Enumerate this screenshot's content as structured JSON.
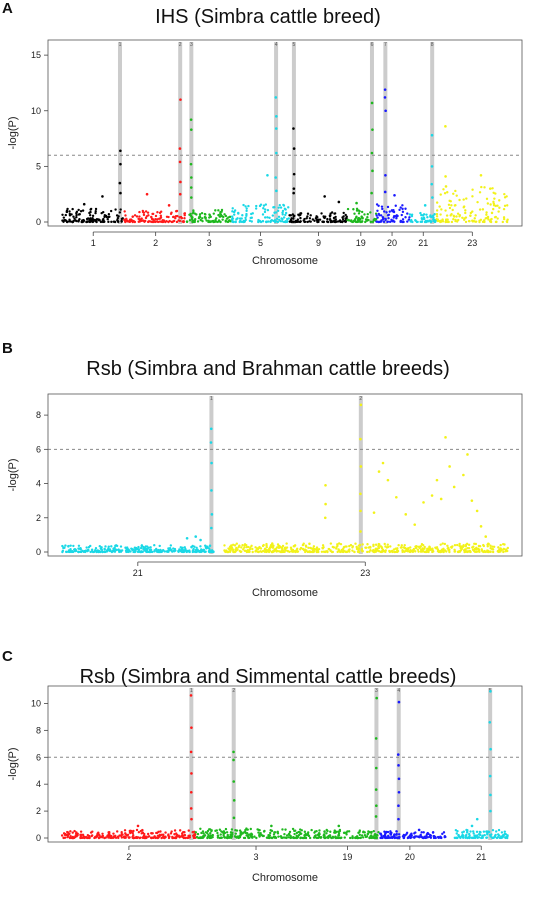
{
  "panels": [
    {
      "letter": "A",
      "title": "IHS (Simbra cattle breed)"
    },
    {
      "letter": "B",
      "title": "Rsb (Simbra and Brahman cattle breeds)"
    },
    {
      "letter": "C",
      "title": "Rsb (Simbra and Simmental cattle breeds)"
    }
  ],
  "colors": {
    "black": "#000000",
    "red": "#ff1a1a",
    "green": "#1fb81f",
    "cyan": "#1ad8e6",
    "blue": "#1a1aff",
    "yellow": "#f2f21a",
    "highlight": "#cccccc",
    "threshold": "#888888"
  },
  "chart_data": [
    {
      "type": "scatter",
      "title": "IHS (Simbra cattle breed)",
      "xlabel": "Chromosome",
      "ylabel": "-log(P)",
      "ylim": [
        0,
        16
      ],
      "yticks": [
        0,
        5,
        10,
        15
      ],
      "threshold": 6,
      "grid": false,
      "x_domain": [
        0,
        100
      ],
      "series": [
        {
          "name": "1",
          "color": "#000000",
          "range": [
            0,
            14
          ],
          "base_max": 1.2,
          "peaks": [
            [
              13,
              6.4
            ],
            [
              13,
              5.2
            ],
            [
              13,
              3.5
            ],
            [
              13,
              2.6
            ],
            [
              9,
              2.3
            ],
            [
              5,
              1.6
            ]
          ]
        },
        {
          "name": "2",
          "color": "#ff1a1a",
          "range": [
            14,
            28
          ],
          "base_max": 1.0,
          "peaks": [
            [
              26.5,
              11.0
            ],
            [
              26.5,
              6.6
            ],
            [
              26.5,
              5.4
            ],
            [
              26.5,
              3.6
            ],
            [
              26.5,
              2.5
            ],
            [
              19,
              2.5
            ],
            [
              24,
              1.5
            ]
          ]
        },
        {
          "name": "3",
          "color": "#1fb81f",
          "range": [
            28,
            38
          ],
          "base_max": 1.1,
          "peaks": [
            [
              29,
              9.2
            ],
            [
              29,
              8.3
            ],
            [
              29,
              5.2
            ],
            [
              29,
              4.0
            ],
            [
              29,
              3.1
            ],
            [
              29,
              2.2
            ]
          ]
        },
        {
          "name": "5",
          "color": "#1ad8e6",
          "range": [
            38,
            51
          ],
          "base_max": 1.6,
          "peaks": [
            [
              48,
              11.2
            ],
            [
              48,
              9.5
            ],
            [
              48,
              8.4
            ],
            [
              48,
              6.2
            ],
            [
              48,
              4.0
            ],
            [
              48,
              2.8
            ],
            [
              46,
              4.2
            ]
          ]
        },
        {
          "name": "9",
          "color": "#000000",
          "range": [
            51,
            64
          ],
          "base_max": 0.9,
          "peaks": [
            [
              52,
              8.4
            ],
            [
              52,
              6.6
            ],
            [
              52,
              4.3
            ],
            [
              52,
              3.0
            ],
            [
              52,
              2.6
            ],
            [
              59,
              2.3
            ],
            [
              62,
              1.8
            ]
          ]
        },
        {
          "name": "19",
          "color": "#1fb81f",
          "range": [
            64,
            70.5
          ],
          "base_max": 1.2,
          "peaks": [
            [
              69.5,
              10.7
            ],
            [
              69.5,
              8.3
            ],
            [
              69.5,
              6.2
            ],
            [
              69.5,
              4.6
            ],
            [
              69.5,
              2.6
            ],
            [
              66,
              1.7
            ]
          ]
        },
        {
          "name": "20",
          "color": "#1a1aff",
          "range": [
            70.5,
            78
          ],
          "base_max": 1.6,
          "peaks": [
            [
              72.5,
              11.9
            ],
            [
              72.5,
              11.2
            ],
            [
              72.5,
              10.0
            ],
            [
              72.5,
              4.2
            ],
            [
              72.5,
              2.7
            ],
            [
              74.5,
              2.4
            ]
          ]
        },
        {
          "name": "21",
          "color": "#1ad8e6",
          "range": [
            78,
            84
          ],
          "base_max": 0.8,
          "peaks": [
            [
              83,
              7.8
            ],
            [
              83,
              5.0
            ],
            [
              83,
              3.4
            ],
            [
              83,
              2.2
            ],
            [
              81.5,
              1.5
            ]
          ]
        },
        {
          "name": "23",
          "color": "#f2f21a",
          "range": [
            84,
            100
          ],
          "base_max": 3.2,
          "peaks": [
            [
              86,
              8.6
            ],
            [
              86,
              4.1
            ],
            [
              86,
              3.2
            ],
            [
              94,
              4.2
            ],
            [
              96,
              3.0
            ]
          ]
        }
      ],
      "highlight_lines": [
        {
          "x": 13,
          "label": "1"
        },
        {
          "x": 26.5,
          "label": "2"
        },
        {
          "x": 29,
          "label": "3"
        },
        {
          "x": 48,
          "label": "4"
        },
        {
          "x": 52,
          "label": "5"
        },
        {
          "x": 69.5,
          "label": "6"
        },
        {
          "x": 72.5,
          "label": "7"
        },
        {
          "x": 83,
          "label": "8"
        }
      ],
      "ticks": [
        {
          "x": 7,
          "label": "1"
        },
        {
          "x": 21,
          "label": "2"
        },
        {
          "x": 33,
          "label": "3"
        },
        {
          "x": 44.5,
          "label": "5"
        },
        {
          "x": 57.5,
          "label": "9"
        },
        {
          "x": 67,
          "label": "19"
        },
        {
          "x": 74,
          "label": "20"
        },
        {
          "x": 81,
          "label": "21"
        },
        {
          "x": 92,
          "label": "23"
        }
      ]
    },
    {
      "type": "scatter",
      "title": "Rsb (Simbra and Brahman cattle breeds)",
      "xlabel": "Chromosome",
      "ylabel": "-log(P)",
      "ylim": [
        0,
        9
      ],
      "yticks": [
        0,
        2,
        4,
        6,
        8
      ],
      "threshold": 6,
      "grid": false,
      "x_domain": [
        0,
        100
      ],
      "series": [
        {
          "name": "21",
          "color": "#1ad8e6",
          "range": [
            0,
            34
          ],
          "base_max": 0.4,
          "peaks": [
            [
              33.5,
              7.2
            ],
            [
              33.5,
              6.4
            ],
            [
              33.5,
              5.2
            ],
            [
              33.5,
              3.6
            ],
            [
              33.5,
              2.2
            ],
            [
              33.5,
              1.4
            ],
            [
              28,
              0.8
            ],
            [
              30,
              0.9
            ],
            [
              31,
              0.7
            ]
          ]
        },
        {
          "name": "23",
          "color": "#f2f21a",
          "range": [
            36,
            100
          ],
          "base_max": 0.5,
          "peaks": [
            [
              67,
              8.6
            ],
            [
              67,
              6.6
            ],
            [
              67,
              5.0
            ],
            [
              67,
              3.4
            ],
            [
              67,
              2.4
            ],
            [
              67,
              1.2
            ],
            [
              59,
              3.9
            ],
            [
              59,
              2.8
            ],
            [
              59,
              2.0
            ],
            [
              70,
              2.3
            ],
            [
              71,
              4.7
            ],
            [
              72,
              5.2
            ],
            [
              73,
              4.2
            ],
            [
              75,
              3.2
            ],
            [
              77,
              2.2
            ],
            [
              79,
              1.6
            ],
            [
              81,
              2.9
            ],
            [
              83,
              3.3
            ],
            [
              84,
              4.2
            ],
            [
              85,
              3.1
            ],
            [
              86,
              6.7
            ],
            [
              87,
              5.0
            ],
            [
              88,
              3.8
            ],
            [
              90,
              4.5
            ],
            [
              91,
              5.7
            ],
            [
              92,
              3.0
            ],
            [
              93,
              2.4
            ],
            [
              94,
              1.5
            ],
            [
              95,
              0.9
            ]
          ]
        }
      ],
      "highlight_lines": [
        {
          "x": 33.5,
          "label": "1"
        },
        {
          "x": 67,
          "label": "2"
        }
      ],
      "ticks": [
        {
          "x": 17,
          "label": "21"
        },
        {
          "x": 68,
          "label": "23"
        }
      ]
    },
    {
      "type": "scatter",
      "title": "Rsb (Simbra and Simmental cattle breeds)",
      "xlabel": "Chromosome",
      "ylabel": "-log(P)",
      "ylim": [
        0,
        11
      ],
      "yticks": [
        0,
        2,
        4,
        6,
        8,
        10
      ],
      "threshold": 6,
      "grid": false,
      "x_domain": [
        0,
        100
      ],
      "series": [
        {
          "name": "2",
          "color": "#ff1a1a",
          "range": [
            0,
            30
          ],
          "base_max": 0.6,
          "peaks": [
            [
              29,
              10.6
            ],
            [
              29,
              8.2
            ],
            [
              29,
              6.4
            ],
            [
              29,
              4.8
            ],
            [
              29,
              3.4
            ],
            [
              29,
              2.2
            ],
            [
              29,
              1.4
            ],
            [
              17,
              0.9
            ]
          ]
        },
        {
          "name": "3",
          "color": "#1fb81f",
          "range": [
            30,
            57
          ],
          "base_max": 0.7,
          "peaks": [
            [
              38.5,
              6.4
            ],
            [
              38.5,
              5.8
            ],
            [
              38.5,
              4.2
            ],
            [
              38.5,
              2.8
            ],
            [
              38.5,
              1.5
            ],
            [
              47,
              0.9
            ]
          ]
        },
        {
          "name": "19",
          "color": "#1fb81f",
          "range": [
            57,
            71
          ],
          "base_max": 0.6,
          "peaks": [
            [
              70.5,
              10.4
            ],
            [
              70.5,
              7.4
            ],
            [
              70.5,
              5.2
            ],
            [
              70.5,
              3.6
            ],
            [
              70.5,
              2.4
            ],
            [
              70.5,
              1.6
            ],
            [
              62,
              0.9
            ]
          ]
        },
        {
          "name": "20",
          "color": "#1a1aff",
          "range": [
            71,
            86
          ],
          "base_max": 0.5,
          "peaks": [
            [
              75.5,
              10.1
            ],
            [
              75.5,
              6.2
            ],
            [
              75.5,
              5.4
            ],
            [
              75.5,
              4.4
            ],
            [
              75.5,
              3.4
            ],
            [
              75.5,
              2.4
            ],
            [
              75.5,
              1.4
            ],
            [
              80,
              0.6
            ]
          ]
        },
        {
          "name": "21",
          "color": "#1ad8e6",
          "range": [
            88,
            100
          ],
          "base_max": 0.6,
          "peaks": [
            [
              96,
              10.9
            ],
            [
              96,
              8.6
            ],
            [
              96,
              6.6
            ],
            [
              96,
              4.6
            ],
            [
              96,
              3.2
            ],
            [
              96,
              2.0
            ],
            [
              93,
              1.4
            ],
            [
              92,
              0.9
            ]
          ]
        }
      ],
      "highlight_lines": [
        {
          "x": 29,
          "label": "1"
        },
        {
          "x": 38.5,
          "label": "2"
        },
        {
          "x": 70.5,
          "label": "3"
        },
        {
          "x": 75.5,
          "label": "4"
        },
        {
          "x": 96,
          "label": "5"
        }
      ],
      "ticks": [
        {
          "x": 15,
          "label": "2"
        },
        {
          "x": 43.5,
          "label": "3"
        },
        {
          "x": 64,
          "label": "19"
        },
        {
          "x": 78,
          "label": "20"
        },
        {
          "x": 94,
          "label": "21"
        }
      ]
    }
  ]
}
